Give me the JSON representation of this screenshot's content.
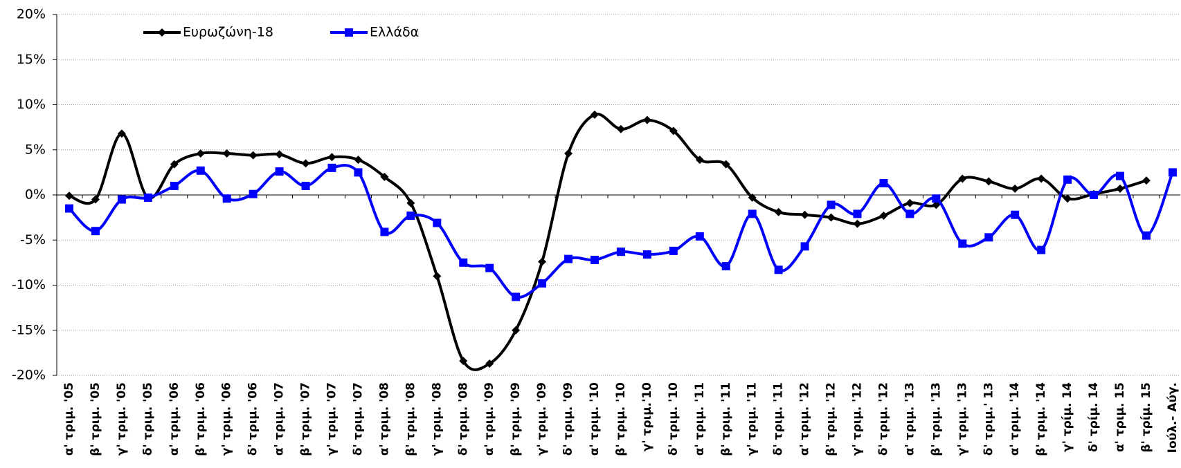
{
  "chart_data": {
    "type": "line",
    "categories": [
      "α' τριμ. '05",
      "β' τριμ. '05",
      "γ' τριμ. '05",
      "δ' τριμ. '05",
      "α' τριμ. '06",
      "β' τριμ. '06",
      "γ' τριμ. '06",
      "δ' τριμ. '06",
      "α' τριμ. '07",
      "β' τριμ. '07",
      "γ' τριμ. '07",
      "δ' τριμ. '07",
      "α' τριμ. '08",
      "β' τριμ. '08",
      "γ' τριμ. '08",
      "δ' τριμ. '08",
      "α' τριμ. '09",
      "β' τριμ. '09",
      "γ' τριμ. '09",
      "δ' τριμ. '09",
      "α' τριμ. '10",
      "β' τριμ. '10",
      "γ' τριμ.'10",
      "δ' τριμ. '10",
      "α' τριμ. '11",
      "β' τριμ. '11",
      "γ' τριμ. '11",
      "δ' τριμ. '11",
      "α' τριμ. '12",
      "β' τριμ. '12",
      "γ' τριμ. '12",
      "δ' τριμ. '12",
      "α' τριμ. '13",
      "β' τριμ. '13",
      "γ' τριμ. '13",
      "δ' τριμ.' 13",
      "α' τριμ. '14",
      "β' τριμ. '14",
      "γ' τρίμ. 14",
      "δ' τρίμ. 14",
      "α' τριμ. 15",
      "β' τρίμ. 15",
      "Ιούλ.- Αύγ."
    ],
    "series": [
      {
        "name": "Ευρωζώνη-18",
        "color": "#000000",
        "marker": "diamond",
        "values": [
          -0.1,
          -0.5,
          6.8,
          -0.3,
          3.4,
          4.6,
          4.6,
          4.4,
          4.5,
          3.5,
          4.2,
          3.9,
          2.0,
          -0.9,
          -9.0,
          -18.4,
          -18.7,
          -15.0,
          -7.4,
          4.6,
          8.9,
          7.3,
          8.3,
          7.1,
          3.9,
          3.4,
          -0.3,
          -1.9,
          -2.2,
          -2.5,
          -3.2,
          -2.3,
          -0.9,
          -1.1,
          1.8,
          1.5,
          0.7,
          1.8,
          -0.4,
          0.1,
          0.7,
          1.6,
          null
        ]
      },
      {
        "name": "Ελλάδα",
        "color": "#0000ff",
        "marker": "square",
        "values": [
          -1.5,
          -4.0,
          -0.5,
          -0.3,
          1.0,
          2.7,
          -0.4,
          0.1,
          2.6,
          1.0,
          3.0,
          2.5,
          -4.1,
          -2.3,
          -3.1,
          -7.5,
          -8.1,
          -11.3,
          -9.8,
          -7.1,
          -7.2,
          -6.3,
          -6.6,
          -6.2,
          -4.6,
          -7.9,
          -2.1,
          -8.3,
          -5.7,
          -1.1,
          -2.1,
          1.3,
          -2.1,
          -0.4,
          -5.4,
          -4.7,
          -2.2,
          -6.1,
          1.7,
          0.0,
          2.1,
          -4.5,
          2.5
        ]
      }
    ],
    "ylim": [
      -20,
      20
    ],
    "yticks": [
      {
        "value": -20,
        "label": "-20%"
      },
      {
        "value": -15,
        "label": "-15%"
      },
      {
        "value": -10,
        "label": "-10%"
      },
      {
        "value": -5,
        "label": "-5%"
      },
      {
        "value": 0,
        "label": "0%"
      },
      {
        "value": 5,
        "label": "5%"
      },
      {
        "value": 10,
        "label": "10%"
      },
      {
        "value": 15,
        "label": "15%"
      },
      {
        "value": 20,
        "label": "20%"
      }
    ],
    "grid": true,
    "legend": "top-left"
  }
}
